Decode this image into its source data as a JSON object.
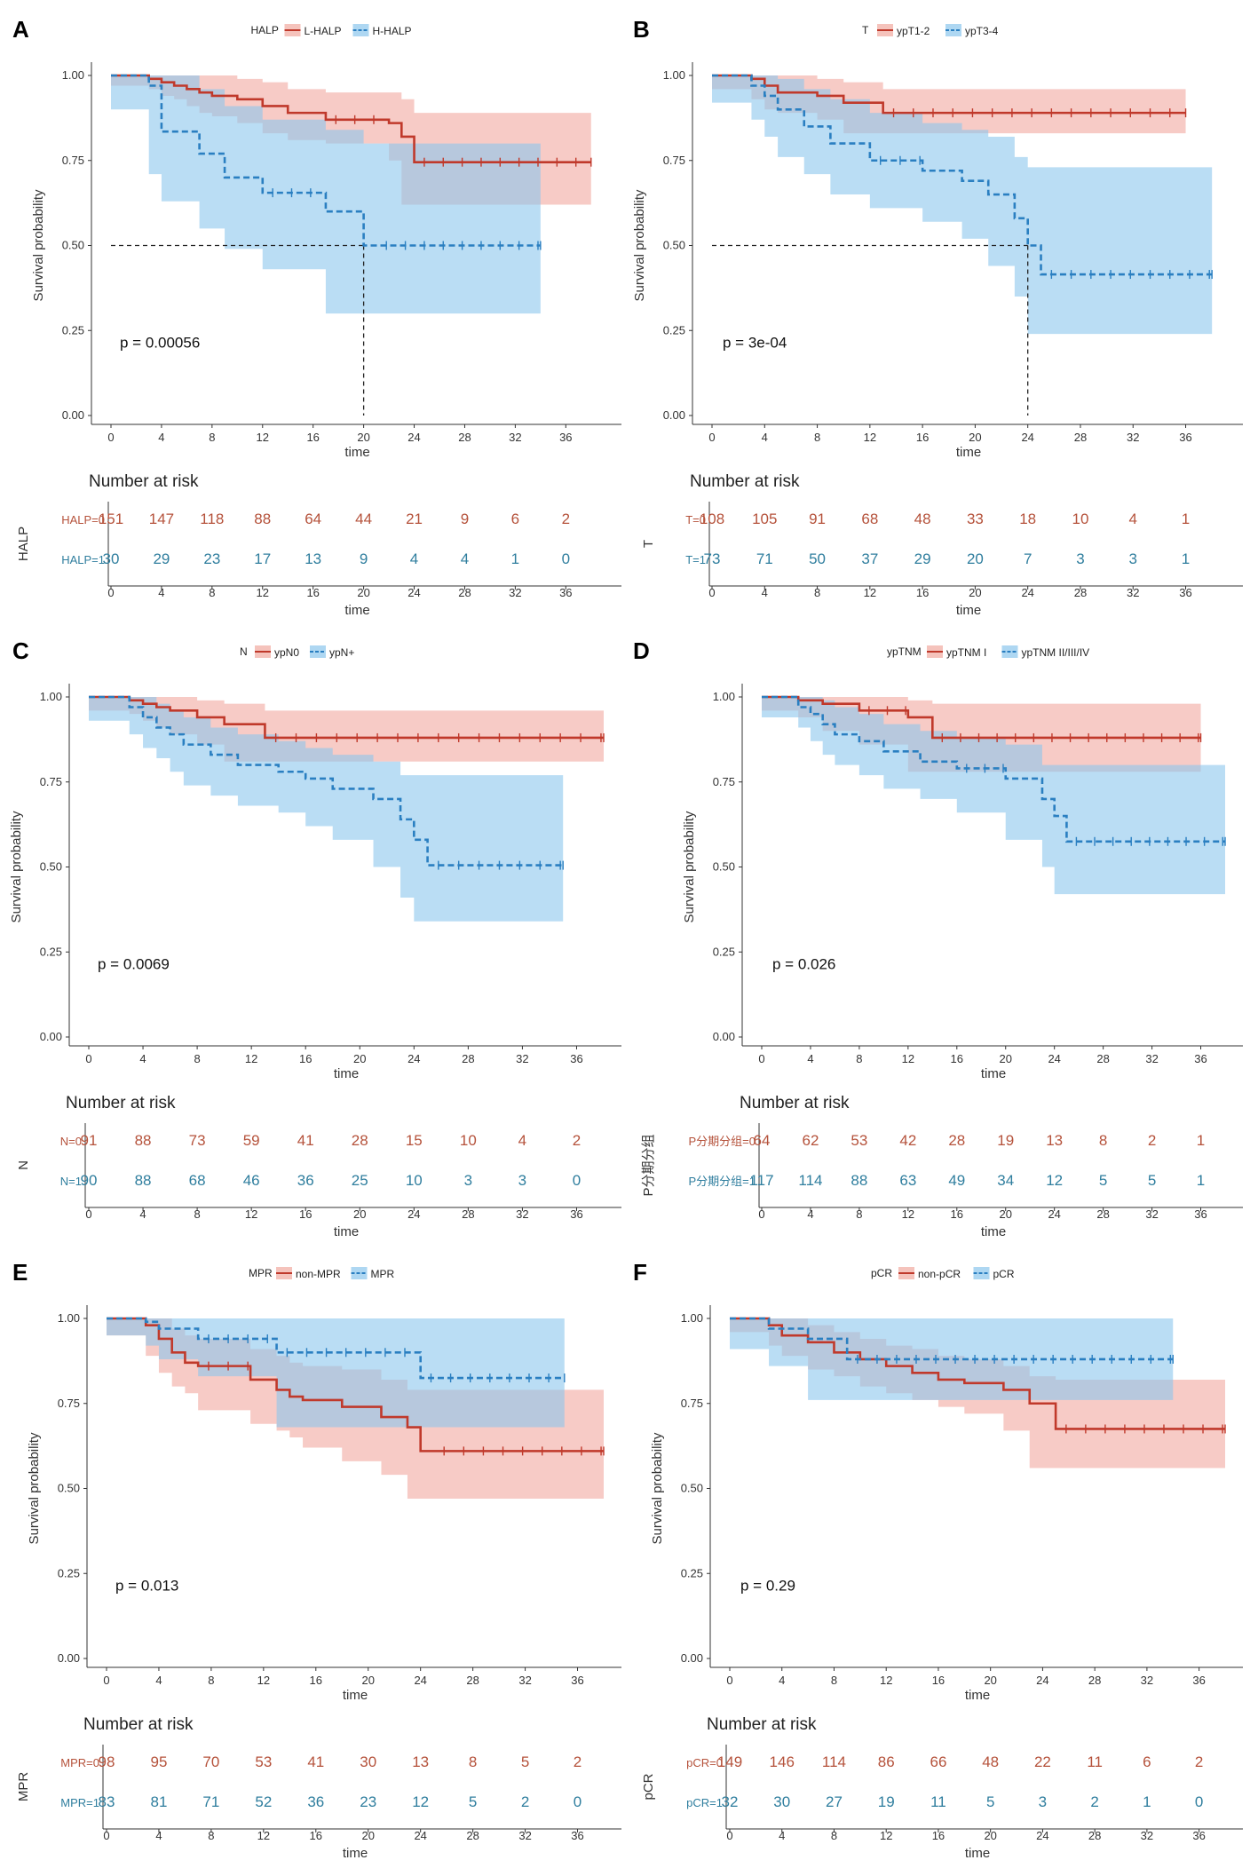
{
  "colors": {
    "low": "#c0392b",
    "low_fill": "#f1a9a0",
    "high": "#2a7fc1",
    "high_fill": "#8cc6ec",
    "axis": "#333333",
    "risk_low": "#b5523b",
    "risk_high": "#2f7e9e"
  },
  "chart_data": [
    {
      "type": "line",
      "panel": "A",
      "legend_title": "HALP",
      "title": "",
      "xlabel": "time",
      "ylabel": "Survival probability",
      "xlim": [
        0,
        39
      ],
      "ylim": [
        0,
        1
      ],
      "x_ticks": [
        0,
        4,
        8,
        12,
        16,
        20,
        24,
        28,
        32,
        36
      ],
      "y_ticks": [
        "0.00",
        "0.25",
        "0.50",
        "0.75",
        "1.00"
      ],
      "pvalue": "p = 0.00056",
      "median_lines": true,
      "series": [
        {
          "name": "L-HALP",
          "x": [
            0,
            3,
            4,
            5,
            6,
            7,
            8,
            10,
            12,
            14,
            17,
            22,
            23,
            24,
            38
          ],
          "y": [
            1,
            0.99,
            0.98,
            0.97,
            0.96,
            0.95,
            0.94,
            0.93,
            0.91,
            0.89,
            0.87,
            0.86,
            0.82,
            0.745,
            0.745
          ],
          "upper": [
            1,
            1,
            1,
            1,
            1,
            1,
            1,
            0.99,
            0.98,
            0.96,
            0.95,
            0.95,
            0.93,
            0.89,
            0.89
          ],
          "lower": [
            1,
            0.97,
            0.96,
            0.94,
            0.93,
            0.91,
            0.89,
            0.88,
            0.86,
            0.83,
            0.81,
            0.8,
            0.75,
            0.62,
            0.62
          ]
        },
        {
          "name": "H-HALP",
          "x": [
            0,
            3,
            4,
            7,
            9,
            12,
            17,
            20,
            21,
            34
          ],
          "y": [
            1,
            0.97,
            0.835,
            0.77,
            0.7,
            0.655,
            0.6,
            0.5,
            0.5,
            0.5
          ],
          "upper": [
            1,
            1,
            1,
            0.96,
            0.91,
            0.87,
            0.84,
            0.8,
            0.8,
            0.8
          ],
          "lower": [
            1,
            0.9,
            0.71,
            0.63,
            0.55,
            0.49,
            0.43,
            0.3,
            0.3,
            0.3
          ]
        }
      ],
      "risk_table": {
        "title": "Number at risk",
        "strata_label": "HALP",
        "rows": [
          {
            "label": "HALP=0",
            "values": [
              151,
              147,
              118,
              88,
              64,
              44,
              21,
              9,
              6,
              2
            ]
          },
          {
            "label": "HALP=1",
            "values": [
              30,
              29,
              23,
              17,
              13,
              9,
              4,
              4,
              1,
              0
            ]
          }
        ]
      }
    },
    {
      "type": "line",
      "panel": "B",
      "legend_title": "T",
      "title": "",
      "xlabel": "time",
      "ylabel": "Survival probability",
      "xlim": [
        0,
        39
      ],
      "ylim": [
        0,
        1
      ],
      "x_ticks": [
        0,
        4,
        8,
        12,
        16,
        20,
        24,
        28,
        32,
        36
      ],
      "y_ticks": [
        "0.00",
        "0.25",
        "0.50",
        "0.75",
        "1.00"
      ],
      "pvalue": "p = 3e-04",
      "median_lines": true,
      "series": [
        {
          "name": "ypT1-2",
          "x": [
            0,
            3,
            4,
            5,
            8,
            10,
            13,
            36
          ],
          "y": [
            1,
            0.99,
            0.97,
            0.95,
            0.94,
            0.92,
            0.89,
            0.89
          ],
          "upper": [
            1,
            1,
            1,
            1,
            0.99,
            0.98,
            0.96,
            0.96
          ],
          "lower": [
            1,
            0.96,
            0.93,
            0.9,
            0.89,
            0.87,
            0.83,
            0.83
          ]
        },
        {
          "name": "ypT3-4",
          "x": [
            0,
            3,
            4,
            5,
            7,
            9,
            12,
            16,
            19,
            21,
            23,
            24,
            25,
            38
          ],
          "y": [
            1,
            0.97,
            0.94,
            0.9,
            0.85,
            0.8,
            0.75,
            0.72,
            0.69,
            0.65,
            0.58,
            0.5,
            0.415,
            0.415
          ],
          "upper": [
            1,
            1,
            1,
            0.99,
            0.96,
            0.93,
            0.89,
            0.86,
            0.84,
            0.82,
            0.76,
            0.73,
            0.73,
            0.73
          ],
          "lower": [
            1,
            0.92,
            0.87,
            0.82,
            0.76,
            0.71,
            0.65,
            0.61,
            0.57,
            0.52,
            0.44,
            0.35,
            0.24,
            0.24
          ]
        }
      ],
      "risk_table": {
        "title": "Number at risk",
        "strata_label": "T",
        "rows": [
          {
            "label": "T=0",
            "values": [
              108,
              105,
              91,
              68,
              48,
              33,
              18,
              10,
              4,
              1
            ]
          },
          {
            "label": "T=1",
            "values": [
              73,
              71,
              50,
              37,
              29,
              20,
              7,
              3,
              3,
              1
            ]
          }
        ]
      }
    },
    {
      "type": "line",
      "panel": "C",
      "legend_title": "N",
      "title": "",
      "xlabel": "time",
      "ylabel": "Survival probability",
      "xlim": [
        0,
        38
      ],
      "ylim": [
        0,
        1
      ],
      "x_ticks": [
        0,
        4,
        8,
        12,
        16,
        20,
        24,
        28,
        32,
        36
      ],
      "y_ticks": [
        "0.00",
        "0.25",
        "0.50",
        "0.75",
        "1.00"
      ],
      "pvalue": "p = 0.0069",
      "median_lines": false,
      "series": [
        {
          "name": "ypN0",
          "x": [
            0,
            3,
            4,
            5,
            6,
            8,
            10,
            13,
            38
          ],
          "y": [
            1,
            0.99,
            0.98,
            0.97,
            0.96,
            0.94,
            0.92,
            0.88,
            0.88
          ],
          "upper": [
            1,
            1,
            1,
            1,
            1,
            0.99,
            0.98,
            0.96,
            0.96
          ],
          "lower": [
            1,
            0.96,
            0.95,
            0.93,
            0.91,
            0.89,
            0.86,
            0.81,
            0.81
          ]
        },
        {
          "name": "ypN+",
          "x": [
            0,
            3,
            4,
            5,
            6,
            7,
            9,
            11,
            14,
            16,
            18,
            21,
            23,
            24,
            25,
            35
          ],
          "y": [
            1,
            0.97,
            0.94,
            0.91,
            0.89,
            0.86,
            0.83,
            0.8,
            0.78,
            0.76,
            0.73,
            0.7,
            0.64,
            0.58,
            0.505,
            0.505
          ],
          "upper": [
            1,
            1,
            1,
            0.98,
            0.96,
            0.94,
            0.91,
            0.89,
            0.87,
            0.85,
            0.83,
            0.81,
            0.77,
            0.77,
            0.77,
            0.77
          ],
          "lower": [
            1,
            0.93,
            0.89,
            0.85,
            0.82,
            0.78,
            0.74,
            0.71,
            0.68,
            0.66,
            0.62,
            0.58,
            0.5,
            0.41,
            0.34,
            0.34
          ]
        }
      ],
      "risk_table": {
        "title": "Number at risk",
        "strata_label": "N",
        "rows": [
          {
            "label": "N=0",
            "values": [
              91,
              88,
              73,
              59,
              41,
              28,
              15,
              10,
              4,
              2
            ]
          },
          {
            "label": "N=1",
            "values": [
              90,
              88,
              68,
              46,
              36,
              25,
              10,
              3,
              3,
              0
            ]
          }
        ]
      }
    },
    {
      "type": "line",
      "panel": "D",
      "legend_title": "ypTNM",
      "title": "",
      "xlabel": "time",
      "ylabel": "Survival probability",
      "xlim": [
        0,
        38
      ],
      "ylim": [
        0,
        1
      ],
      "x_ticks": [
        0,
        4,
        8,
        12,
        16,
        20,
        24,
        28,
        32,
        36
      ],
      "y_ticks": [
        "0.00",
        "0.25",
        "0.50",
        "0.75",
        "1.00"
      ],
      "pvalue": "p = 0.026",
      "median_lines": false,
      "series": [
        {
          "name": "ypTNM I",
          "x": [
            0,
            3,
            5,
            8,
            12,
            14,
            36
          ],
          "y": [
            1,
            0.99,
            0.98,
            0.96,
            0.94,
            0.88,
            0.88
          ],
          "upper": [
            1,
            1,
            1,
            1,
            0.99,
            0.98,
            0.98
          ],
          "lower": [
            1,
            0.96,
            0.94,
            0.9,
            0.86,
            0.78,
            0.78
          ]
        },
        {
          "name": "ypTNM II/III/IV",
          "x": [
            0,
            3,
            4,
            5,
            6,
            8,
            10,
            13,
            16,
            20,
            23,
            24,
            25,
            38
          ],
          "y": [
            1,
            0.97,
            0.95,
            0.92,
            0.89,
            0.87,
            0.84,
            0.81,
            0.79,
            0.76,
            0.7,
            0.65,
            0.575,
            0.575
          ],
          "upper": [
            1,
            1,
            1,
            0.99,
            0.97,
            0.95,
            0.92,
            0.9,
            0.88,
            0.86,
            0.8,
            0.8,
            0.8,
            0.8
          ],
          "lower": [
            1,
            0.94,
            0.91,
            0.87,
            0.83,
            0.8,
            0.77,
            0.73,
            0.7,
            0.66,
            0.58,
            0.5,
            0.42,
            0.42
          ]
        }
      ],
      "risk_table": {
        "title": "Number at risk",
        "strata_label": "P分期分组",
        "rows": [
          {
            "label": "P分期分组=0",
            "values": [
              64,
              62,
              53,
              42,
              28,
              19,
              13,
              8,
              2,
              1
            ]
          },
          {
            "label": "P分期分组=1",
            "values": [
              117,
              114,
              88,
              63,
              49,
              34,
              12,
              5,
              5,
              1
            ]
          }
        ]
      }
    },
    {
      "type": "line",
      "panel": "E",
      "legend_title": "MPR",
      "title": "",
      "xlabel": "time",
      "ylabel": "Survival probability",
      "xlim": [
        0,
        38
      ],
      "ylim": [
        0,
        1
      ],
      "x_ticks": [
        0,
        4,
        8,
        12,
        16,
        20,
        24,
        28,
        32,
        36
      ],
      "y_ticks": [
        "0.00",
        "0.25",
        "0.50",
        "0.75",
        "1.00"
      ],
      "pvalue": "p = 0.013",
      "median_lines": false,
      "series": [
        {
          "name": "non-MPR",
          "x": [
            0,
            3,
            4,
            5,
            6,
            7,
            11,
            13,
            14,
            15,
            18,
            21,
            23,
            24,
            25,
            38
          ],
          "y": [
            1,
            0.98,
            0.94,
            0.9,
            0.87,
            0.86,
            0.82,
            0.79,
            0.77,
            0.76,
            0.74,
            0.71,
            0.68,
            0.61,
            0.61,
            0.61
          ],
          "upper": [
            1,
            1,
            1,
            0.97,
            0.95,
            0.94,
            0.91,
            0.89,
            0.87,
            0.86,
            0.85,
            0.82,
            0.79,
            0.79,
            0.79,
            0.79
          ],
          "lower": [
            1,
            0.95,
            0.89,
            0.84,
            0.8,
            0.78,
            0.73,
            0.69,
            0.67,
            0.65,
            0.62,
            0.58,
            0.54,
            0.47,
            0.47,
            0.47
          ]
        },
        {
          "name": "MPR",
          "x": [
            0,
            3,
            4,
            7,
            13,
            24,
            35
          ],
          "y": [
            1,
            0.99,
            0.97,
            0.94,
            0.9,
            0.825,
            0.825
          ],
          "upper": [
            1,
            1,
            1,
            1,
            1,
            1,
            1
          ],
          "lower": [
            1,
            0.95,
            0.92,
            0.88,
            0.83,
            0.68,
            0.68
          ]
        }
      ],
      "risk_table": {
        "title": "Number at risk",
        "strata_label": "MPR",
        "rows": [
          {
            "label": "MPR=0",
            "values": [
              98,
              95,
              70,
              53,
              41,
              30,
              13,
              8,
              5,
              2
            ]
          },
          {
            "label": "MPR=1",
            "values": [
              83,
              81,
              71,
              52,
              36,
              23,
              12,
              5,
              2,
              0
            ]
          }
        ]
      }
    },
    {
      "type": "line",
      "panel": "F",
      "legend_title": "pCR",
      "title": "",
      "xlabel": "time",
      "ylabel": "Survival probability",
      "xlim": [
        0,
        38
      ],
      "ylim": [
        0,
        1
      ],
      "x_ticks": [
        0,
        4,
        8,
        12,
        16,
        20,
        24,
        28,
        32,
        36
      ],
      "y_ticks": [
        "0.00",
        "0.25",
        "0.50",
        "0.75",
        "1.00"
      ],
      "pvalue": "p = 0.29",
      "median_lines": false,
      "series": [
        {
          "name": "non-pCR",
          "x": [
            0,
            3,
            4,
            6,
            8,
            10,
            12,
            14,
            16,
            18,
            21,
            23,
            25,
            38
          ],
          "y": [
            1,
            0.98,
            0.95,
            0.93,
            0.9,
            0.88,
            0.86,
            0.84,
            0.82,
            0.81,
            0.79,
            0.75,
            0.675,
            0.675
          ],
          "upper": [
            1,
            1,
            1,
            0.98,
            0.96,
            0.94,
            0.92,
            0.91,
            0.89,
            0.88,
            0.86,
            0.83,
            0.82,
            0.82
          ],
          "lower": [
            1,
            0.96,
            0.92,
            0.89,
            0.85,
            0.83,
            0.8,
            0.78,
            0.76,
            0.74,
            0.72,
            0.67,
            0.56,
            0.56
          ]
        },
        {
          "name": "pCR",
          "x": [
            0,
            3,
            6,
            9,
            34
          ],
          "y": [
            1,
            0.97,
            0.94,
            0.88,
            0.88
          ],
          "upper": [
            1,
            1,
            1,
            1,
            1
          ],
          "lower": [
            1,
            0.91,
            0.86,
            0.76,
            0.76
          ]
        }
      ],
      "risk_table": {
        "title": "Number at risk",
        "strata_label": "pCR",
        "rows": [
          {
            "label": "pCR=0",
            "values": [
              149,
              146,
              114,
              86,
              66,
              48,
              22,
              11,
              6,
              2
            ]
          },
          {
            "label": "pCR=1",
            "values": [
              32,
              30,
              27,
              19,
              11,
              5,
              3,
              2,
              1,
              0
            ]
          }
        ]
      }
    }
  ]
}
